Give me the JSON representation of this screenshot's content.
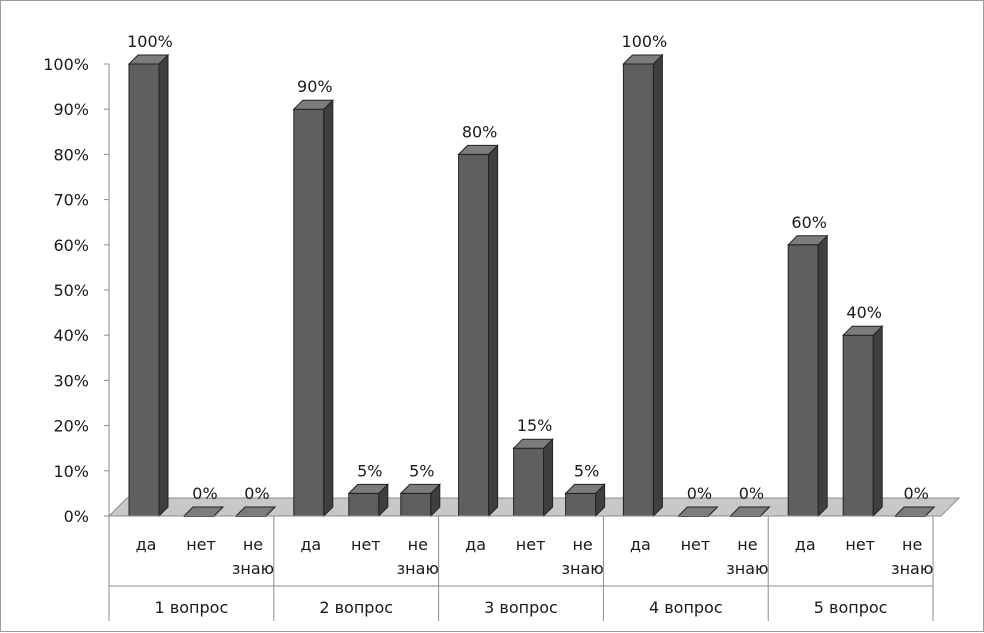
{
  "chart_data": {
    "type": "bar",
    "title": "",
    "xlabel": "",
    "ylabel": "",
    "ylim": [
      0,
      100
    ],
    "y_ticks": [
      "0%",
      "10%",
      "20%",
      "30%",
      "40%",
      "50%",
      "60%",
      "70%",
      "80%",
      "90%",
      "100%"
    ],
    "grid": false,
    "legend": "none",
    "style": "3d-column",
    "colors": {
      "bar_front": "#5f5f5f",
      "bar_side": "#3f3f3f",
      "bar_top": "#7c7c7c",
      "floor": "#c8c8c8",
      "axis": "#8c8c8c"
    },
    "groups": [
      {
        "name": "1 вопрос",
        "bars": [
          {
            "category": [
              "да"
            ],
            "value": 100,
            "label": "100%"
          },
          {
            "category": [
              "нет"
            ],
            "value": 0,
            "label": "0%"
          },
          {
            "category": [
              "не",
              "знаю"
            ],
            "value": 0,
            "label": "0%"
          }
        ]
      },
      {
        "name": "2 вопрос",
        "bars": [
          {
            "category": [
              "да"
            ],
            "value": 90,
            "label": "90%"
          },
          {
            "category": [
              "нет"
            ],
            "value": 5,
            "label": "5%"
          },
          {
            "category": [
              "не",
              "знаю"
            ],
            "value": 5,
            "label": "5%"
          }
        ]
      },
      {
        "name": "3 вопрос",
        "bars": [
          {
            "category": [
              "да"
            ],
            "value": 80,
            "label": "80%"
          },
          {
            "category": [
              "нет"
            ],
            "value": 15,
            "label": "15%"
          },
          {
            "category": [
              "не",
              "знаю"
            ],
            "value": 5,
            "label": "5%"
          }
        ]
      },
      {
        "name": "4 вопрос",
        "bars": [
          {
            "category": [
              "да"
            ],
            "value": 100,
            "label": "100%"
          },
          {
            "category": [
              "нет"
            ],
            "value": 0,
            "label": "0%"
          },
          {
            "category": [
              "не",
              "знаю"
            ],
            "value": 0,
            "label": "0%"
          }
        ]
      },
      {
        "name": "5 вопрос",
        "bars": [
          {
            "category": [
              "да"
            ],
            "value": 60,
            "label": "60%"
          },
          {
            "category": [
              "нет"
            ],
            "value": 40,
            "label": "40%"
          },
          {
            "category": [
              "не",
              "знаю"
            ],
            "value": 0,
            "label": "0%"
          }
        ]
      }
    ]
  }
}
